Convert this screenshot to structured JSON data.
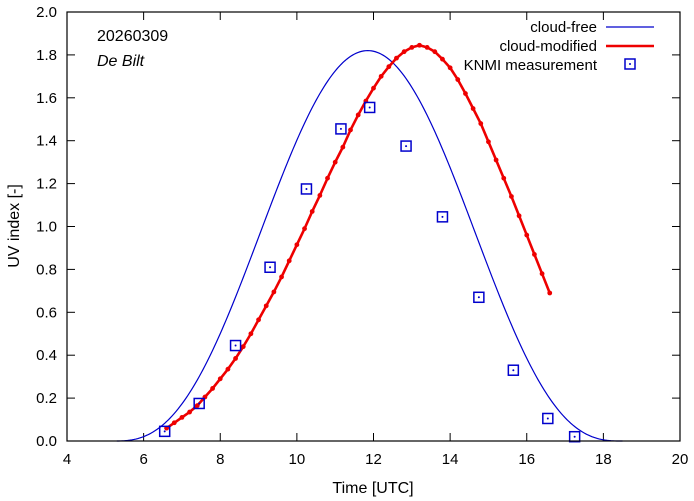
{
  "chart_data": {
    "type": "line",
    "date_label": "20260309",
    "location_label": "De Bilt",
    "xlabel": "Time  [UTC]",
    "ylabel": "UV index  [-]",
    "xlim": [
      4,
      20
    ],
    "ylim": [
      0,
      2.0
    ],
    "x_ticks": [
      4,
      6,
      8,
      10,
      12,
      14,
      16,
      18,
      20
    ],
    "x_tick_labels": [
      "4",
      "6",
      "8",
      "10",
      "12",
      "14",
      "16",
      "18",
      "20"
    ],
    "y_ticks": [
      0,
      0.2,
      0.4,
      0.6,
      0.8,
      1.0,
      1.2,
      1.4,
      1.6,
      1.8,
      2.0
    ],
    "y_tick_labels": [
      "0.0",
      "0.2",
      "0.4",
      "0.6",
      "0.8",
      "1.0",
      "1.2",
      "1.4",
      "1.6",
      "1.8",
      "2.0"
    ],
    "legend_position": "top-right",
    "series": [
      {
        "name": "cloud-free",
        "style": "line",
        "color": "#0000cc",
        "model": {
          "peak_x": 11.85,
          "peak_y": 1.82,
          "start_x": 5.3,
          "end_x": 18.5
        }
      },
      {
        "name": "cloud-modified",
        "style": "line-points",
        "color": "#ee0000",
        "x": [
          6.6,
          6.8,
          7.0,
          7.2,
          7.4,
          7.6,
          7.8,
          8.0,
          8.2,
          8.4,
          8.6,
          8.8,
          9.0,
          9.2,
          9.4,
          9.6,
          9.8,
          10.0,
          10.2,
          10.4,
          10.6,
          10.8,
          11.0,
          11.2,
          11.4,
          11.6,
          11.8,
          12.0,
          12.2,
          12.4,
          12.6,
          12.8,
          13.0,
          13.2,
          13.4,
          13.6,
          13.8,
          14.0,
          14.2,
          14.4,
          14.6,
          14.8,
          15.0,
          15.2,
          15.4,
          15.6,
          15.8,
          16.0,
          16.2,
          16.4,
          16.6
        ],
        "y": [
          0.06,
          0.085,
          0.11,
          0.135,
          0.165,
          0.205,
          0.245,
          0.29,
          0.335,
          0.385,
          0.44,
          0.5,
          0.565,
          0.63,
          0.695,
          0.765,
          0.84,
          0.915,
          0.99,
          1.07,
          1.145,
          1.225,
          1.3,
          1.37,
          1.45,
          1.52,
          1.585,
          1.645,
          1.7,
          1.745,
          1.785,
          1.815,
          1.835,
          1.845,
          1.835,
          1.815,
          1.78,
          1.74,
          1.685,
          1.62,
          1.55,
          1.48,
          1.395,
          1.31,
          1.225,
          1.14,
          1.05,
          0.96,
          0.87,
          0.78,
          0.69
        ]
      },
      {
        "name": "KNMI measurement",
        "style": "points",
        "color": "#0000cc",
        "x": [
          6.55,
          7.45,
          8.4,
          9.3,
          10.25,
          11.15,
          11.9,
          12.85,
          13.8,
          14.75,
          15.65,
          16.55,
          17.25
        ],
        "y": [
          0.045,
          0.175,
          0.445,
          0.81,
          1.175,
          1.455,
          1.555,
          1.375,
          1.045,
          0.67,
          0.33,
          0.105,
          0.02
        ]
      }
    ]
  }
}
